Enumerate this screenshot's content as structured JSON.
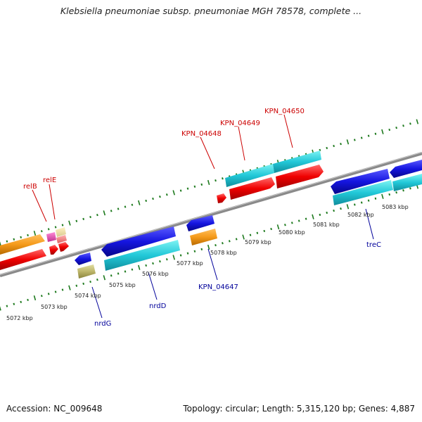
{
  "title": "Klebsiella pneumoniae subsp. pneumoniae MGH 78578, complete ...",
  "footer": {
    "accession": "Accession: NC_009648",
    "summary": "Topology: circular; Length: 5,315,120 bp; Genes: 4,887"
  },
  "colors": {
    "background": "#ffffff",
    "backbone": "#808080",
    "tick": "#1e7a1e",
    "forward_label": "#cc0000",
    "reverse_label": "#00009a"
  },
  "ruler": {
    "unit": "kbp",
    "ticks": [
      "5072 kbp",
      "5073 kbp",
      "5074 kbp",
      "5075 kbp",
      "5076 kbp",
      "5077 kbp",
      "5078 kbp",
      "5079 kbp",
      "5080 kbp",
      "5081 kbp",
      "5082 kbp",
      "5083 kbp"
    ]
  },
  "genes": {
    "forward": [
      {
        "id": "relB",
        "label": "relB"
      },
      {
        "id": "relE",
        "label": "relE"
      },
      {
        "id": "KPN_04648",
        "label": "KPN_04648"
      },
      {
        "id": "KPN_04649",
        "label": "KPN_04649"
      },
      {
        "id": "KPN_04650",
        "label": "KPN_04650"
      }
    ],
    "reverse": [
      {
        "id": "nrdG",
        "label": "nrdG"
      },
      {
        "id": "nrdD",
        "label": "nrdD"
      },
      {
        "id": "KPN_04647",
        "label": "KPN_04647"
      },
      {
        "id": "treC",
        "label": "treC"
      }
    ]
  }
}
